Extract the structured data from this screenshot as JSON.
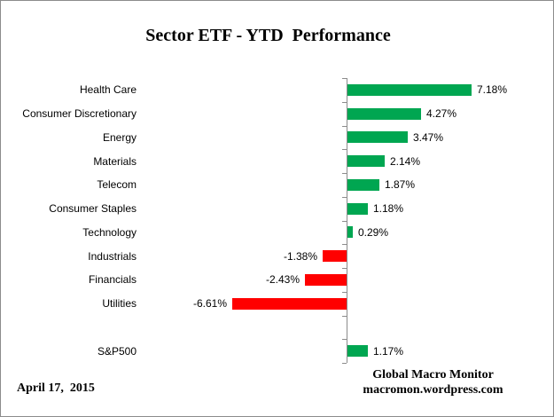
{
  "title": "Sector ETF - YTD  Performance",
  "footer": {
    "date": "April 17,  2015",
    "brand_line1": "Global Macro Monitor",
    "brand_line2": "macromon.wordpress.com"
  },
  "colors": {
    "positive_bar": "#00A651",
    "negative_bar": "#FF0000",
    "axis": "#8C8C8C",
    "text": "#000000",
    "border": "#8C8C8C"
  },
  "chart_data": {
    "type": "bar",
    "orientation": "horizontal",
    "title": "Sector ETF - YTD  Performance",
    "xlabel": "",
    "ylabel": "",
    "grid": false,
    "legend": false,
    "value_unit": "%",
    "rows": [
      {
        "label": "Health Care",
        "value": 7.18,
        "display": "7.18%"
      },
      {
        "label": "Consumer Discretionary",
        "value": 4.27,
        "display": "4.27%"
      },
      {
        "label": "Energy",
        "value": 3.47,
        "display": "3.47%"
      },
      {
        "label": "Materials",
        "value": 2.14,
        "display": "2.14%"
      },
      {
        "label": "Telecom",
        "value": 1.87,
        "display": "1.87%"
      },
      {
        "label": "Consumer Staples",
        "value": 1.18,
        "display": "1.18%"
      },
      {
        "label": "Technology",
        "value": 0.29,
        "display": "0.29%"
      },
      {
        "label": "Industrials",
        "value": -1.38,
        "display": "-1.38%"
      },
      {
        "label": "Financials",
        "value": -2.43,
        "display": "-2.43%"
      },
      {
        "label": "Utilities",
        "value": -6.61,
        "display": "-6.61%"
      },
      {
        "label": "",
        "value": null,
        "display": ""
      },
      {
        "label": "S&P500",
        "value": 1.17,
        "display": "1.17%"
      }
    ]
  }
}
